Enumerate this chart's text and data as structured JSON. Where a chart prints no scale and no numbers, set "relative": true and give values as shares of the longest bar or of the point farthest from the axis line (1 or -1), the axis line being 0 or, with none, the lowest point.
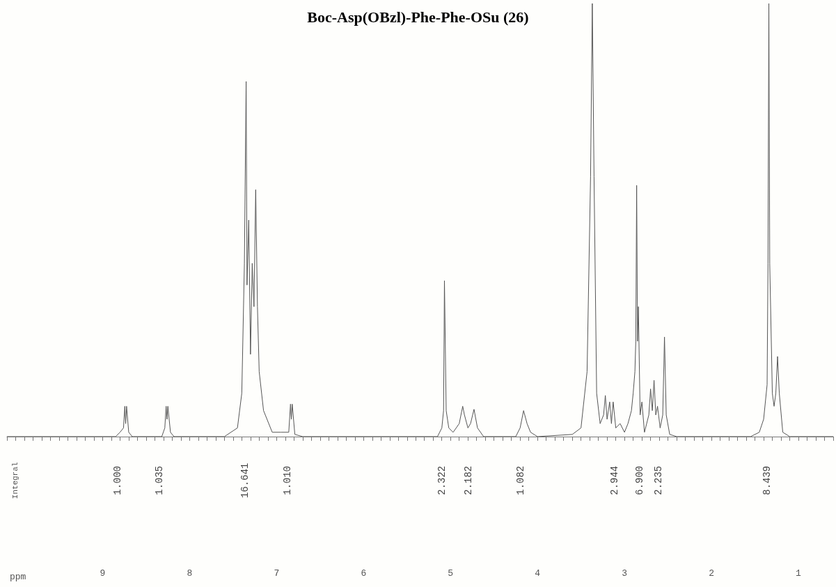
{
  "chart_data": {
    "type": "line",
    "title": "Boc-Asp(OBzl)-Phe-Phe-OSu (26)",
    "xlabel": "ppm",
    "relative": true,
    "color": "#555555",
    "marker": "none",
    "xlim": [
      10.1,
      0.6
    ],
    "xticks": [
      9,
      8,
      7,
      6,
      5,
      4,
      3,
      2,
      1
    ],
    "x": [
      10.1,
      8.85,
      8.8,
      8.76,
      8.745,
      8.735,
      8.725,
      8.7,
      8.66,
      8.32,
      8.285,
      8.27,
      8.26,
      8.25,
      8.22,
      8.18,
      7.6,
      7.45,
      7.4,
      7.37,
      7.35,
      7.34,
      7.32,
      7.3,
      7.28,
      7.26,
      7.24,
      7.22,
      7.2,
      7.15,
      7.05,
      6.95,
      6.86,
      6.84,
      6.83,
      6.82,
      6.79,
      6.7,
      5.15,
      5.1,
      5.08,
      5.07,
      5.05,
      5.02,
      4.97,
      4.9,
      4.86,
      4.84,
      4.8,
      4.77,
      4.73,
      4.69,
      4.62,
      4.25,
      4.2,
      4.16,
      4.12,
      4.08,
      4.0,
      3.6,
      3.5,
      3.43,
      3.39,
      3.37,
      3.35,
      3.32,
      3.28,
      3.24,
      3.22,
      3.2,
      3.17,
      3.15,
      3.13,
      3.1,
      3.05,
      3.0,
      2.96,
      2.92,
      2.9,
      2.88,
      2.87,
      2.86,
      2.85,
      2.84,
      2.82,
      2.8,
      2.77,
      2.72,
      2.7,
      2.68,
      2.66,
      2.64,
      2.62,
      2.59,
      2.56,
      2.54,
      2.52,
      2.48,
      2.4,
      1.55,
      1.45,
      1.4,
      1.36,
      1.35,
      1.34,
      1.33,
      1.3,
      1.28,
      1.26,
      1.24,
      1.22,
      1.18,
      1.1,
      0.6
    ],
    "values": [
      0,
      0,
      0.01,
      0.02,
      0.07,
      0.03,
      0.07,
      0.01,
      0,
      0,
      0.02,
      0.07,
      0.04,
      0.07,
      0.01,
      0,
      0,
      0.02,
      0.1,
      0.4,
      0.82,
      0.35,
      0.5,
      0.19,
      0.4,
      0.3,
      0.57,
      0.3,
      0.15,
      0.06,
      0.01,
      0.01,
      0.01,
      0.075,
      0.04,
      0.075,
      0.005,
      0,
      0,
      0.02,
      0.06,
      0.36,
      0.06,
      0.02,
      0.01,
      0.03,
      0.07,
      0.05,
      0.02,
      0.03,
      0.063,
      0.02,
      0,
      0,
      0.02,
      0.06,
      0.03,
      0.01,
      0,
      0.005,
      0.02,
      0.15,
      0.6,
      1,
      0.6,
      0.1,
      0.03,
      0.05,
      0.095,
      0.04,
      0.08,
      0.03,
      0.08,
      0.02,
      0.03,
      0.01,
      0.03,
      0.06,
      0.1,
      0.15,
      0.22,
      0.58,
      0.22,
      0.3,
      0.05,
      0.08,
      0.01,
      0.05,
      0.11,
      0.06,
      0.13,
      0.05,
      0.07,
      0.02,
      0.05,
      0.23,
      0.05,
      0.005,
      0,
      0,
      0.01,
      0.04,
      0.12,
      0.4,
      1,
      0.4,
      0.1,
      0.07,
      0.1,
      0.185,
      0.1,
      0.01,
      0,
      0
    ],
    "annotations": [
      "Integral",
      "1.000",
      "1.035",
      "16.641",
      "1.010",
      "2.322",
      "2.182",
      "1.082",
      "2.944",
      "6.900",
      "2.235",
      "8.439"
    ]
  }
}
